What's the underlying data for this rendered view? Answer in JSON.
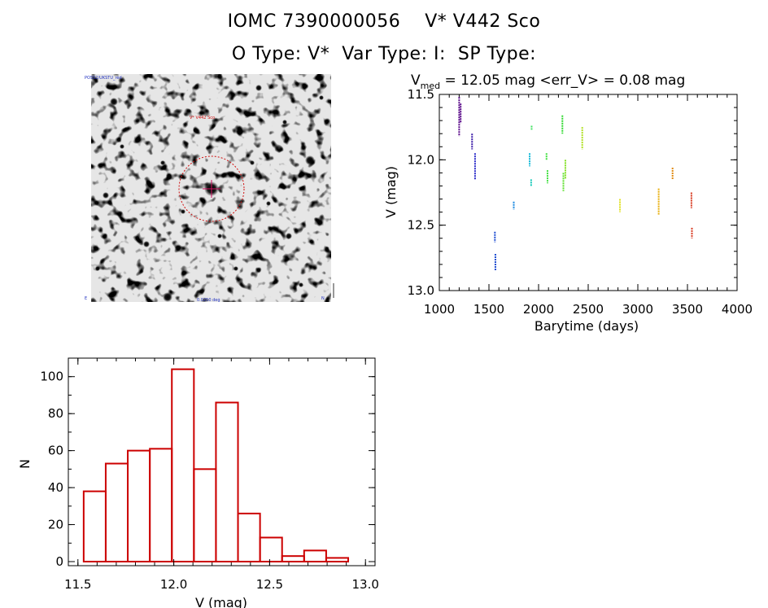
{
  "header": {
    "title_line1": "IOMC 7390000056    V* V442 Sco",
    "title_line2": "O Type: V*  Var Type: I:  SP Type:"
  },
  "image_panel": {
    "top_left_label": "POSS2/UKSTU_red",
    "target_label": "V* V442 Sco",
    "bottom_center_label": "0.0250 deg",
    "bottom_left_label": "E",
    "bottom_right_label": "N"
  },
  "chart_data": [
    {
      "type": "scatter",
      "title_prefix": "V",
      "title_sub": "med",
      "title_rest": " = 12.05 mag <err_V> = 0.08 mag",
      "xlabel": "Barytime (days)",
      "ylabel": "V (mag)",
      "xlim": [
        1000,
        4000
      ],
      "ylim": [
        13.0,
        11.5
      ],
      "xticks": [
        "1000",
        "1500",
        "2000",
        "2500",
        "3000",
        "3500",
        "4000"
      ],
      "yticks": [
        "11.5",
        "12.0",
        "12.5",
        "13.0"
      ],
      "series": [
        {
          "x": 1200,
          "ymin": 11.52,
          "ymax": 11.82,
          "color": "#5a0a8a"
        },
        {
          "x": 1215,
          "ymin": 11.57,
          "ymax": 11.72,
          "color": "#5a0a8a"
        },
        {
          "x": 1330,
          "ymin": 11.8,
          "ymax": 11.92,
          "color": "#3a1aa8"
        },
        {
          "x": 1360,
          "ymin": 11.95,
          "ymax": 12.15,
          "color": "#2a2ac8"
        },
        {
          "x": 1560,
          "ymin": 12.55,
          "ymax": 12.63,
          "color": "#1a4ad0"
        },
        {
          "x": 1565,
          "ymin": 12.72,
          "ymax": 12.85,
          "color": "#1a4ad0"
        },
        {
          "x": 1750,
          "ymin": 12.32,
          "ymax": 12.38,
          "color": "#1a88e0"
        },
        {
          "x": 1910,
          "ymin": 11.95,
          "ymax": 12.05,
          "color": "#10b8d8"
        },
        {
          "x": 1925,
          "ymin": 12.15,
          "ymax": 12.2,
          "color": "#10c8b8"
        },
        {
          "x": 1930,
          "ymin": 11.74,
          "ymax": 11.77,
          "color": "#40e060"
        },
        {
          "x": 2080,
          "ymin": 11.95,
          "ymax": 12.0,
          "color": "#40e040"
        },
        {
          "x": 2090,
          "ymin": 12.08,
          "ymax": 12.18,
          "color": "#40e040"
        },
        {
          "x": 2240,
          "ymin": 11.66,
          "ymax": 11.8,
          "color": "#30d830"
        },
        {
          "x": 2250,
          "ymin": 12.1,
          "ymax": 12.24,
          "color": "#60e030"
        },
        {
          "x": 2270,
          "ymin": 12.0,
          "ymax": 12.15,
          "color": "#80e020"
        },
        {
          "x": 2440,
          "ymin": 11.75,
          "ymax": 11.92,
          "color": "#b0e020"
        },
        {
          "x": 2820,
          "ymin": 12.3,
          "ymax": 12.4,
          "color": "#e0e020"
        },
        {
          "x": 3210,
          "ymin": 12.22,
          "ymax": 12.42,
          "color": "#e8b010"
        },
        {
          "x": 3350,
          "ymin": 12.06,
          "ymax": 12.15,
          "color": "#e08a10"
        },
        {
          "x": 3540,
          "ymin": 12.25,
          "ymax": 12.37,
          "color": "#d83a20"
        },
        {
          "x": 3545,
          "ymin": 12.52,
          "ymax": 12.6,
          "color": "#d83a20"
        }
      ]
    },
    {
      "type": "bar",
      "title": "",
      "xlabel": "V (mag)",
      "ylabel": "N",
      "xlim": [
        11.45,
        13.05
      ],
      "ylim": [
        0,
        110
      ],
      "xticks": [
        "11.5",
        "12.0",
        "12.5",
        "13.0"
      ],
      "yticks": [
        "0",
        "20",
        "40",
        "60",
        "80",
        "100"
      ],
      "bin_edges": [
        11.53,
        11.645,
        11.76,
        11.875,
        11.99,
        12.105,
        12.22,
        12.335,
        12.45,
        12.565,
        12.68,
        12.795,
        12.91
      ],
      "values": [
        38,
        53,
        60,
        61,
        104,
        50,
        86,
        26,
        13,
        3,
        6,
        2
      ],
      "color": "#cc0000"
    }
  ]
}
